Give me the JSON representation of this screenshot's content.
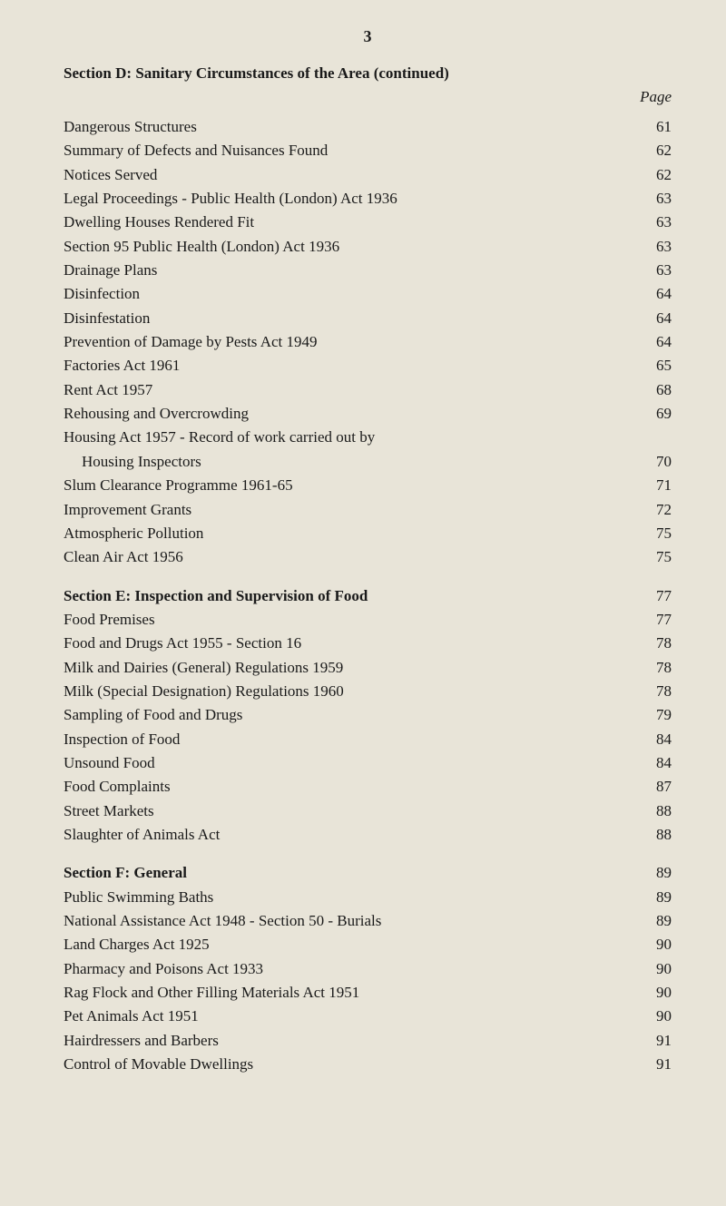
{
  "background_color": "#e8e4d8",
  "text_color": "#1a1a1a",
  "page_number": "3",
  "page_header_label": "Page",
  "sections": [
    {
      "title": "Section D:  Sanitary Circumstances of the Area (continued)",
      "entries": [
        {
          "label": "Dangerous Structures",
          "page": "61"
        },
        {
          "label": "Summary of Defects and Nuisances Found",
          "page": "62"
        },
        {
          "label": "Notices Served",
          "page": "62"
        },
        {
          "label": "Legal Proceedings - Public Health (London) Act 1936",
          "page": "63"
        },
        {
          "label": "Dwelling Houses Rendered Fit",
          "page": "63"
        },
        {
          "label": "Section 95 Public Health (London) Act 1936",
          "page": "63"
        },
        {
          "label": "Drainage Plans",
          "page": "63"
        },
        {
          "label": "Disinfection",
          "page": "64"
        },
        {
          "label": "Disinfestation",
          "page": "64"
        },
        {
          "label": "Prevention of Damage by Pests Act 1949",
          "page": "64"
        },
        {
          "label": "Factories Act 1961",
          "page": "65"
        },
        {
          "label": "Rent Act 1957",
          "page": "68"
        },
        {
          "label": "Rehousing and Overcrowding",
          "page": "69"
        },
        {
          "label": "Housing Act 1957 - Record of work carried out by",
          "page": ""
        },
        {
          "label": "Housing Inspectors",
          "page": "70",
          "indent": true
        },
        {
          "label": "Slum Clearance Programme 1961-65",
          "page": "71"
        },
        {
          "label": "Improvement Grants",
          "page": "72"
        },
        {
          "label": "Atmospheric Pollution",
          "page": "75"
        },
        {
          "label": "Clean Air Act 1956",
          "page": "75"
        }
      ]
    },
    {
      "title_entry": {
        "label": "Section E:  Inspection and Supervision of Food",
        "page": "77"
      },
      "entries": [
        {
          "label": "Food Premises",
          "page": "77"
        },
        {
          "label": "Food and Drugs Act 1955 - Section 16",
          "page": "78"
        },
        {
          "label": "Milk and Dairies (General) Regulations 1959",
          "page": "78"
        },
        {
          "label": "Milk (Special Designation) Regulations 1960",
          "page": "78"
        },
        {
          "label": "Sampling of Food and Drugs",
          "page": "79"
        },
        {
          "label": "Inspection of Food",
          "page": "84"
        },
        {
          "label": "Unsound Food",
          "page": "84"
        },
        {
          "label": "Food Complaints",
          "page": "87"
        },
        {
          "label": "Street Markets",
          "page": "88"
        },
        {
          "label": "Slaughter of Animals Act",
          "page": "88"
        }
      ]
    },
    {
      "title_entry": {
        "label": "Section F:  General",
        "page": "89"
      },
      "entries": [
        {
          "label": "Public Swimming Baths",
          "page": "89"
        },
        {
          "label": "National Assistance Act 1948 - Section 50 - Burials",
          "page": "89"
        },
        {
          "label": "Land Charges Act 1925",
          "page": "90"
        },
        {
          "label": "Pharmacy and Poisons Act 1933",
          "page": "90"
        },
        {
          "label": "Rag Flock and Other Filling Materials Act 1951",
          "page": "90"
        },
        {
          "label": "Pet Animals Act 1951",
          "page": "90"
        },
        {
          "label": "Hairdressers and Barbers",
          "page": "91"
        },
        {
          "label": "Control of Movable Dwellings",
          "page": "91"
        }
      ]
    }
  ]
}
